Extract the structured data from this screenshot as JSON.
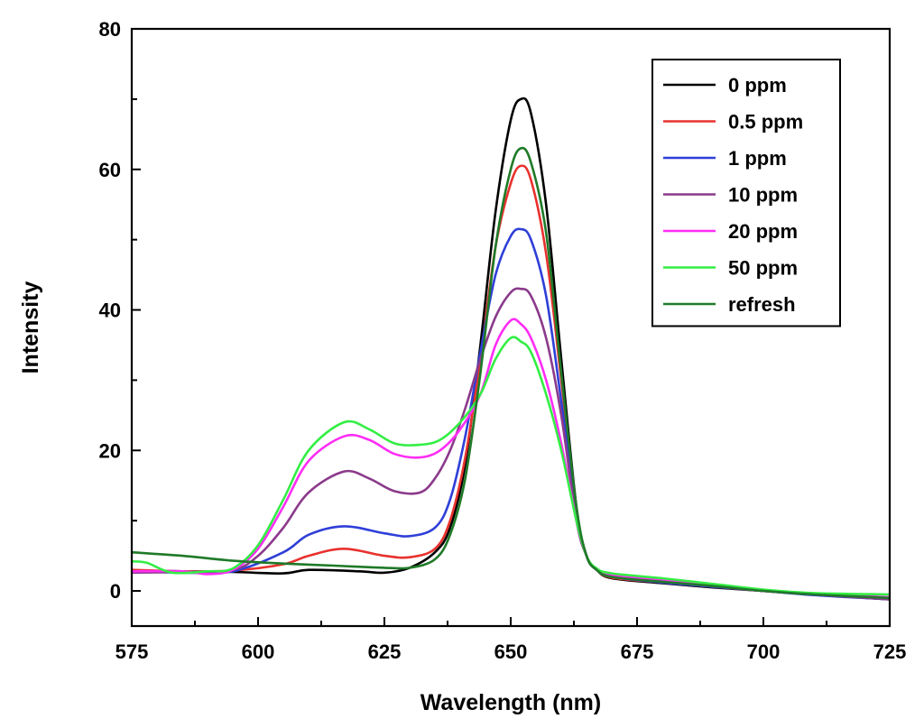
{
  "chart_data": {
    "type": "line",
    "title": "",
    "xlabel": "Wavelength (nm)",
    "ylabel": "Intensity",
    "xlim": [
      575,
      725
    ],
    "ylim": [
      -5,
      80
    ],
    "xticks": [
      575,
      600,
      625,
      650,
      675,
      700,
      725
    ],
    "yticks": [
      0,
      20,
      40,
      60,
      80
    ],
    "legend_position": "top-right",
    "grid": false,
    "series": [
      {
        "name": "0 ppm",
        "color": "#000000",
        "x": [
          575,
          585,
          595,
          605,
          610,
          620,
          625,
          630,
          635,
          638,
          641,
          644,
          647,
          650,
          652,
          654,
          657,
          660,
          663,
          665,
          667,
          670,
          680,
          690,
          700,
          710,
          725
        ],
        "y": [
          2.9,
          2.8,
          2.7,
          2.5,
          3.0,
          2.8,
          2.6,
          3.3,
          5.5,
          9,
          18,
          35,
          54,
          67,
          70,
          68,
          55,
          33,
          12,
          5,
          3,
          1.8,
          1.1,
          0.5,
          0,
          -0.5,
          -1.2
        ]
      },
      {
        "name": "0.5 ppm",
        "color": "#e8322e",
        "x": [
          575,
          585,
          595,
          605,
          610,
          617,
          625,
          630,
          635,
          638,
          641,
          644,
          647,
          650,
          652,
          654,
          657,
          660,
          663,
          665,
          667,
          670,
          680,
          690,
          700,
          710,
          725
        ],
        "y": [
          3.0,
          2.8,
          2.9,
          3.8,
          5.0,
          6.0,
          5.0,
          4.8,
          6.0,
          10,
          19,
          33,
          49,
          58,
          60.5,
          58.5,
          48,
          30,
          11,
          5,
          3,
          1.9,
          1.2,
          0.6,
          0,
          -0.5,
          -1.1
        ]
      },
      {
        "name": "1 ppm",
        "color": "#2f3fd8",
        "x": [
          575,
          585,
          595,
          605,
          610,
          617,
          625,
          630,
          635,
          638,
          641,
          644,
          647,
          650,
          652,
          654,
          657,
          660,
          663,
          665,
          667,
          670,
          680,
          690,
          700,
          710,
          725
        ],
        "y": [
          2.8,
          2.6,
          2.8,
          5.5,
          8.0,
          9.2,
          8.2,
          7.8,
          9.0,
          13,
          22,
          34,
          45,
          50.5,
          51.5,
          50,
          42,
          27,
          11,
          5,
          3,
          2.0,
          1.2,
          0.6,
          0,
          -0.6,
          -1.2
        ]
      },
      {
        "name": "10 ppm",
        "color": "#8b3a8b",
        "x": [
          575,
          585,
          595,
          600,
          605,
          610,
          617,
          622,
          627,
          632,
          635,
          638,
          641,
          644,
          647,
          650,
          652,
          654,
          657,
          660,
          663,
          665,
          667,
          670,
          680,
          690,
          700,
          710,
          725
        ],
        "y": [
          2.6,
          2.7,
          3.0,
          5.0,
          9.0,
          14,
          17,
          16,
          14.2,
          14.0,
          16,
          20,
          26,
          33,
          39,
          42.5,
          43,
          42,
          36,
          25,
          10,
          5,
          3,
          2.2,
          1.4,
          0.7,
          0,
          -0.5,
          -1.2
        ]
      },
      {
        "name": "20 ppm",
        "color": "#ff2df5",
        "x": [
          575,
          585,
          590,
          595,
          600,
          605,
          610,
          617,
          622,
          627,
          632,
          636,
          640,
          644,
          647,
          650,
          652,
          654,
          657,
          660,
          663,
          665,
          667,
          670,
          680,
          690,
          700,
          710,
          725
        ],
        "y": [
          2.8,
          2.8,
          2.4,
          3.0,
          6.0,
          12,
          18.5,
          22,
          21.5,
          19.5,
          19,
          20,
          23,
          28,
          35,
          38.5,
          38,
          36,
          30,
          21,
          10,
          5,
          3,
          2.3,
          1.5,
          0.8,
          0,
          -0.4,
          -0.9
        ]
      },
      {
        "name": "50 ppm",
        "color": "#33ee44",
        "x": [
          575,
          578,
          583,
          590,
          595,
          600,
          605,
          610,
          617,
          622,
          627,
          632,
          636,
          640,
          644,
          647,
          650,
          652,
          654,
          657,
          660,
          663,
          665,
          667,
          670,
          680,
          690,
          700,
          710,
          725
        ],
        "y": [
          4.2,
          4.0,
          2.6,
          2.8,
          3.2,
          6.5,
          13,
          20,
          24,
          23,
          21,
          20.8,
          21.5,
          24,
          28,
          33,
          36,
          35.5,
          34,
          28,
          20,
          10,
          5,
          3.2,
          2.5,
          1.8,
          1.0,
          0.2,
          -0.3,
          -0.5
        ]
      },
      {
        "name": "refresh",
        "color": "#1f7a28",
        "x": [
          575,
          585,
          595,
          605,
          615,
          625,
          630,
          635,
          638,
          641,
          644,
          647,
          650,
          652,
          654,
          657,
          660,
          663,
          665,
          667,
          670,
          680,
          690,
          700,
          710,
          725
        ],
        "y": [
          5.5,
          5.0,
          4.3,
          3.9,
          3.6,
          3.3,
          3.3,
          4.5,
          8,
          16,
          31,
          49,
          60,
          63,
          61,
          51,
          31,
          12,
          5,
          3,
          2.0,
          1.3,
          0.7,
          0,
          -0.5,
          -1.0
        ]
      }
    ]
  }
}
